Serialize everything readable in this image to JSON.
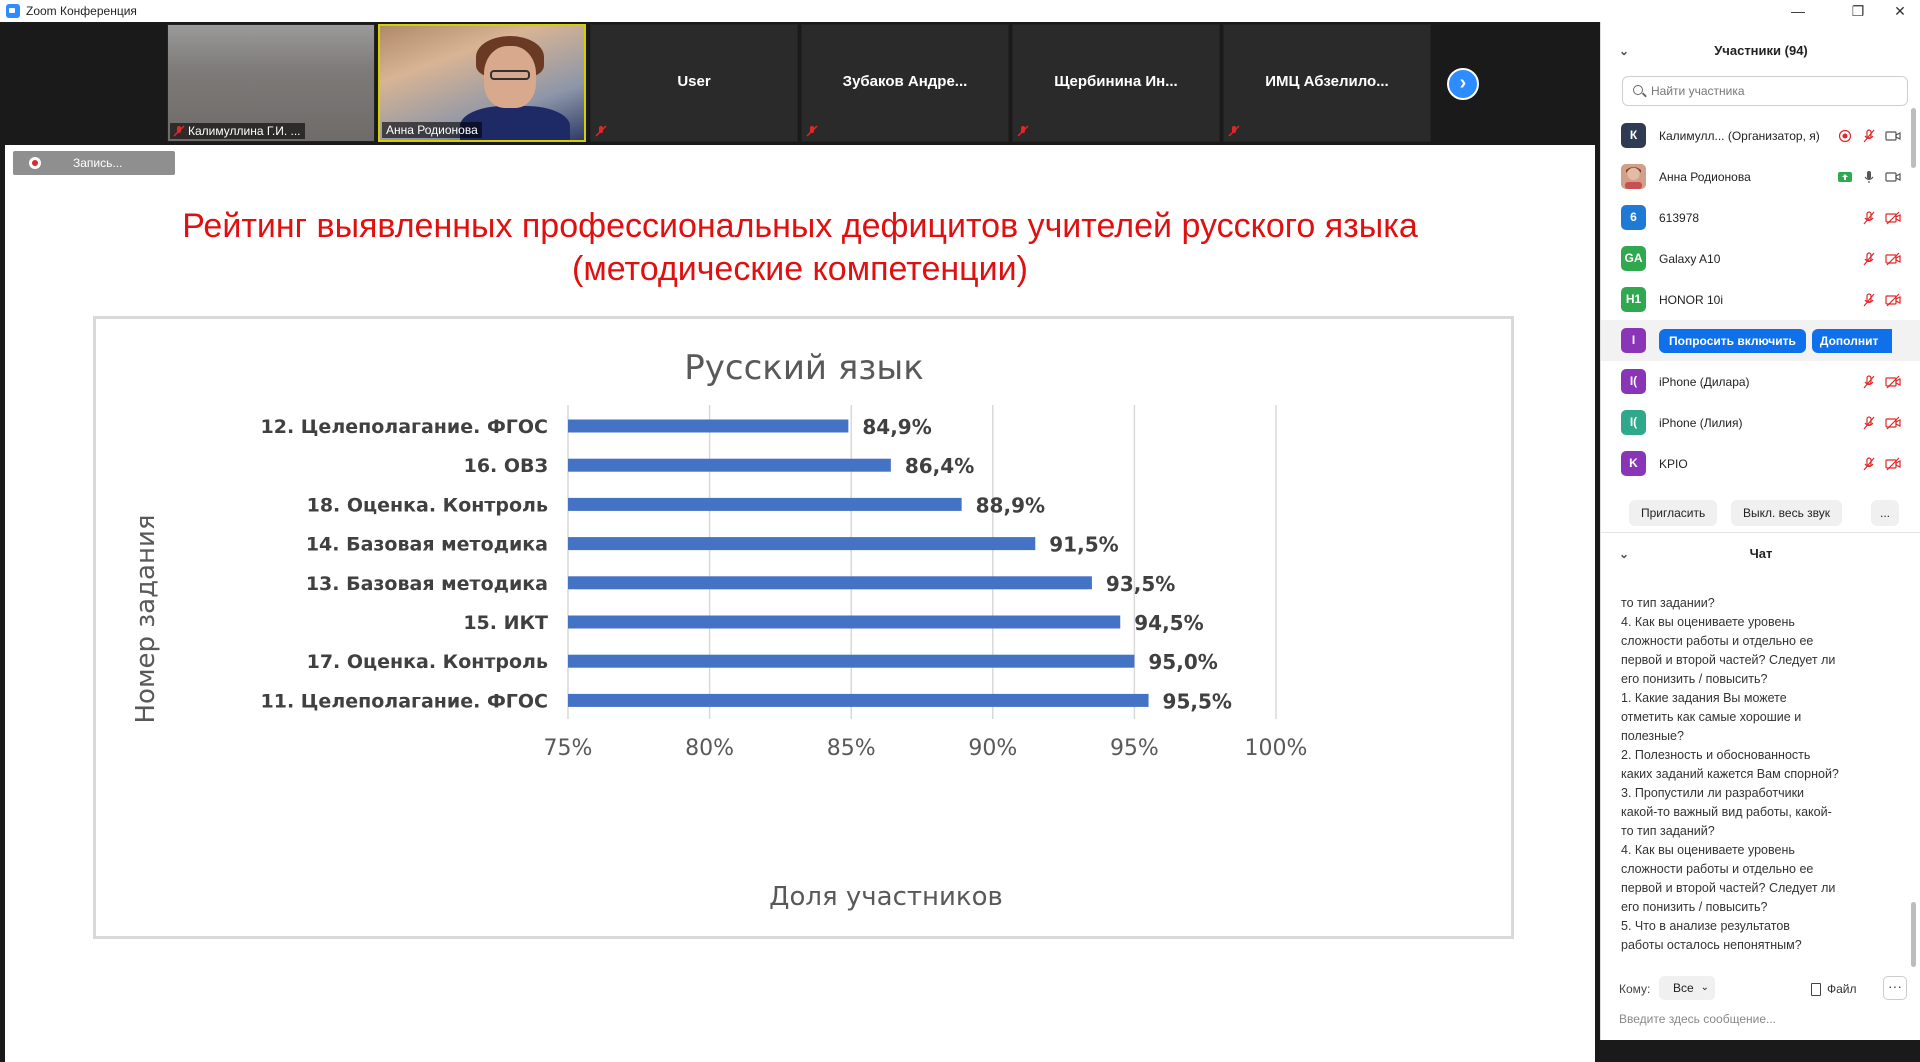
{
  "window": {
    "title": "Zoom Конференция"
  },
  "video_strip": {
    "tiles": [
      {
        "name": "Калимуллина Г.И. ..."
      },
      {
        "name": "Анна Родионова"
      },
      {
        "name": "User"
      },
      {
        "name": "Зубаков Андре..."
      },
      {
        "name": "Щербинина Ин..."
      },
      {
        "name": "ИМЦ Абзелило..."
      }
    ]
  },
  "recording": {
    "label": "Запись..."
  },
  "slide": {
    "title_line1": "Рейтинг выявленных профессиональных дефицитов учителей русского языка",
    "title_line2": "(методические компетенции)"
  },
  "chart_data": {
    "type": "bar",
    "orientation": "horizontal",
    "title": "Русский язык",
    "xlabel": "Доля участников",
    "ylabel": "Номер задания",
    "xlim": [
      75,
      100
    ],
    "xticks": [
      "75%",
      "80%",
      "85%",
      "90%",
      "95%",
      "100%"
    ],
    "xtick_values": [
      75,
      80,
      85,
      90,
      95,
      100
    ],
    "grid": true,
    "bar_color": "#4472c4",
    "categories": [
      "12. Целеполагание. ФГОС",
      "16. ОВЗ",
      "18. Оценка. Контроль",
      "14. Базовая методика",
      "13. Базовая методика",
      "15. ИКТ",
      "17. Оценка. Контроль",
      "11. Целеполагание. ФГОС"
    ],
    "values": [
      84.9,
      86.4,
      88.9,
      91.5,
      93.5,
      94.5,
      95.0,
      95.5
    ],
    "data_labels": [
      "84,9%",
      "86,4%",
      "88,9%",
      "91,5%",
      "93,5%",
      "94,5%",
      "95,0%",
      "95,5%"
    ]
  },
  "participants": {
    "header": "Участники (94)",
    "search_placeholder": "Найти участника",
    "items": [
      {
        "initials": "К",
        "color": "#2f3b52",
        "name": "Калимулл... (Организатор, я)"
      },
      {
        "initials": "",
        "color": "#c0785a",
        "name": "Анна Родионова"
      },
      {
        "initials": "6",
        "color": "#1f7ad6",
        "name": "613978"
      },
      {
        "initials": "GA",
        "color": "#2fa84f",
        "name": "Galaxy A10"
      },
      {
        "initials": "H1",
        "color": "#2fa84f",
        "name": "HONOR 10i"
      },
      {
        "initials": "I",
        "color": "#8a35b8",
        "name": ""
      },
      {
        "initials": "I(",
        "color": "#8a35b8",
        "name": "iPhone (Дилара)"
      },
      {
        "initials": "I(",
        "color": "#2fa88c",
        "name": "iPhone (Лилия)"
      },
      {
        "initials": "K",
        "color": "#8a35b8",
        "name": "KPIO"
      }
    ],
    "ask_button": "Попросить включить",
    "more_button": "Дополнит",
    "invite_button": "Пригласить",
    "mute_all_button": "Выкл. весь звук",
    "more_actions_button": "..."
  },
  "chat": {
    "header": "Чат",
    "lines": [
      "то тип задании?",
      "4.        Как вы оцениваете уровень",
      "сложности работы и отдельно ее",
      "первой и второй частей? Следует ли",
      "его понизить / повысить?",
      "1.        Какие задания Вы можете",
      "отметить как самые хорошие и",
      "полезные?",
      "2.        Полезность и обоснованность",
      "каких заданий кажется Вам спорной?",
      "3.        Пропустили ли разработчики",
      "какой-то важный вид работы, какой-",
      "то тип заданий?",
      "4.        Как вы оцениваете уровень",
      "сложности работы и отдельно ее",
      "первой и второй частей? Следует ли",
      "его понизить / повысить?",
      "5.        Что в анализе результатов",
      "работы осталось непонятным?"
    ],
    "to_label": "Кому:",
    "to_value": "Все",
    "file_label": "Файл",
    "dots": "···",
    "input_placeholder": "Введите здесь сообщение..."
  }
}
